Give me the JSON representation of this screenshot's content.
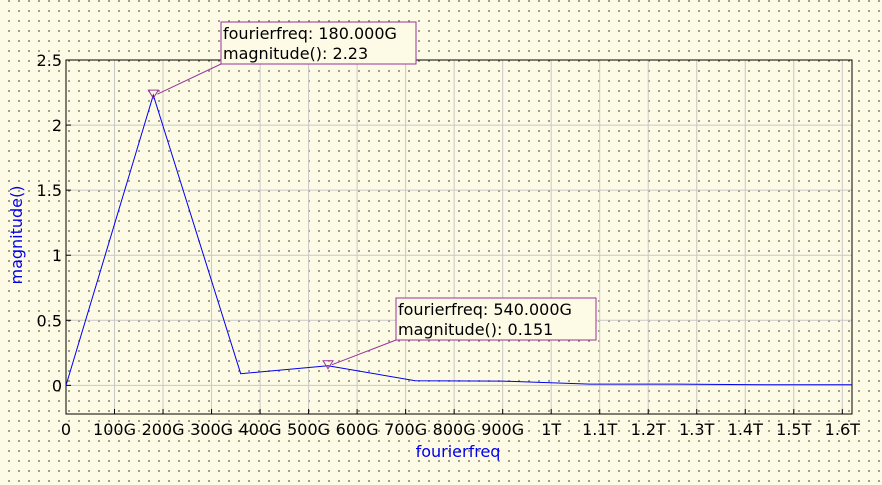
{
  "chart_data": {
    "type": "line",
    "xlabel": "fourierfreq",
    "ylabel": "magnitude()",
    "xlim": [
      0,
      1620000000000.0
    ],
    "ylim": [
      -0.22,
      2.5
    ],
    "x_ticks": [
      {
        "value": 0,
        "label": "0"
      },
      {
        "value": 100000000000.0,
        "label": "100G"
      },
      {
        "value": 200000000000.0,
        "label": "200G"
      },
      {
        "value": 300000000000.0,
        "label": "300G"
      },
      {
        "value": 400000000000.0,
        "label": "400G"
      },
      {
        "value": 500000000000.0,
        "label": "500G"
      },
      {
        "value": 600000000000.0,
        "label": "600G"
      },
      {
        "value": 700000000000.0,
        "label": "700G"
      },
      {
        "value": 800000000000.0,
        "label": "800G"
      },
      {
        "value": 900000000000.0,
        "label": "900G"
      },
      {
        "value": 1000000000000.0,
        "label": "1T"
      },
      {
        "value": 1100000000000.0,
        "label": "1.1T"
      },
      {
        "value": 1200000000000.0,
        "label": "1.2T"
      },
      {
        "value": 1300000000000.0,
        "label": "1.3T"
      },
      {
        "value": 1400000000000.0,
        "label": "1.4T"
      },
      {
        "value": 1500000000000.0,
        "label": "1.5T"
      },
      {
        "value": 1600000000000.0,
        "label": "1.6T"
      }
    ],
    "y_ticks": [
      {
        "value": 0,
        "label": "0"
      },
      {
        "value": 0.5,
        "label": "0.5"
      },
      {
        "value": 1,
        "label": "1"
      },
      {
        "value": 1.5,
        "label": "1.5"
      },
      {
        "value": 2,
        "label": "2"
      },
      {
        "value": 2.5,
        "label": "2.5"
      }
    ],
    "grid": true,
    "series": [
      {
        "color": "#0000ee",
        "x": [
          0,
          180000000000.0,
          360000000000.0,
          540000000000.0,
          720000000000.0,
          900000000000.0,
          1080000000000.0,
          1260000000000.0,
          1440000000000.0,
          1620000000000.0
        ],
        "y": [
          0,
          2.23,
          0.09,
          0.151,
          0.035,
          0.033,
          0.01,
          0.01,
          0.005,
          0.005
        ]
      }
    ],
    "markers": [
      {
        "x": 180000000000.0,
        "y": 2.23,
        "line1": "fourierfreq: 180.000G",
        "line2": "magnitude(): 2.23"
      },
      {
        "x": 540000000000.0,
        "y": 0.151,
        "line1": "fourierfreq: 540.000G",
        "line2": "magnitude(): 0.151"
      }
    ],
    "colors": {
      "series": "#0000ee",
      "marker": "#993399",
      "grid": "#c8c8c8",
      "axis_label": "#0000ee"
    }
  }
}
